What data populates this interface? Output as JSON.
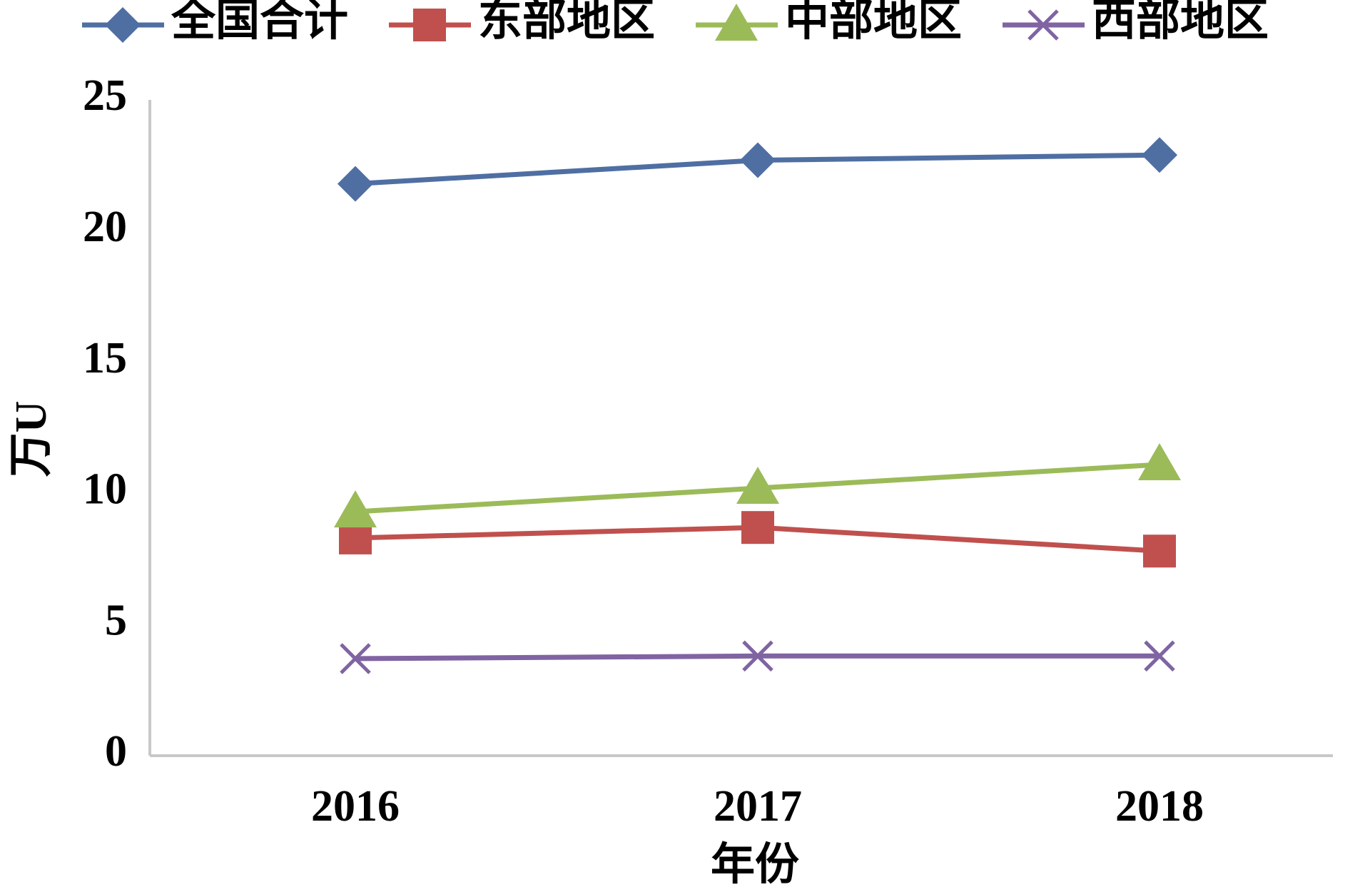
{
  "chart_data": {
    "type": "line",
    "title": "",
    "xlabel": "年份",
    "ylabel": "万U",
    "categories": [
      "2016",
      "2017",
      "2018"
    ],
    "ylim": [
      0,
      25
    ],
    "yticks": [
      0,
      5,
      10,
      15,
      20,
      25
    ],
    "grid": false,
    "legend_position": "top",
    "series": [
      {
        "name": "全国合计",
        "values": [
          21.8,
          22.7,
          22.9
        ],
        "color": "#4f6fa3",
        "marker": "diamond"
      },
      {
        "name": "东部地区",
        "values": [
          8.3,
          8.7,
          7.8
        ],
        "color": "#c0504d",
        "marker": "square"
      },
      {
        "name": "中部地区",
        "values": [
          9.3,
          10.2,
          11.1
        ],
        "color": "#9bbb59",
        "marker": "triangle"
      },
      {
        "name": "西部地区",
        "values": [
          3.7,
          3.8,
          3.8
        ],
        "color": "#8064a2",
        "marker": "x"
      }
    ]
  }
}
